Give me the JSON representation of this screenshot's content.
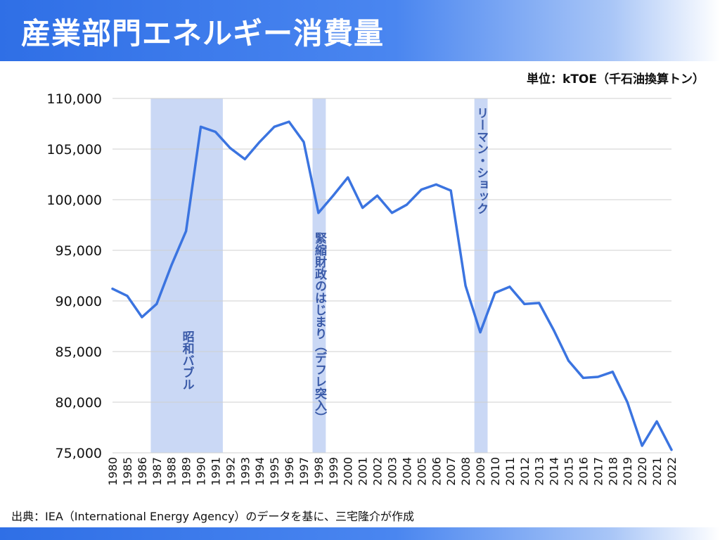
{
  "header": {
    "title": "産業部門エネルギー消費量"
  },
  "unit_label": "単位：kTOE（千石油換算トン）",
  "source": "出典：IEA（International Energy Agency）のデータを基に、三宅隆介が作成",
  "colors": {
    "accent": "#2f6fe6",
    "line": "#3b74e0",
    "band": "#cad8f5",
    "band_text": "#3a5aa8"
  },
  "chart_data": {
    "type": "line",
    "title": "産業部門エネルギー消費量",
    "ylabel": "単位：kTOE（千石油換算トン）",
    "ylim": [
      75000,
      110000
    ],
    "yticks": [
      75000,
      80000,
      85000,
      90000,
      95000,
      100000,
      105000,
      110000
    ],
    "ytick_labels": [
      "75,000",
      "80,000",
      "85,000",
      "90,000",
      "95,000",
      "100,000",
      "105,000",
      "110,000"
    ],
    "grid": true,
    "x": [
      "1980",
      "1985",
      "1986",
      "1987",
      "1988",
      "1989",
      "1990",
      "1991",
      "1992",
      "1993",
      "1994",
      "1995",
      "1996",
      "1997",
      "1998",
      "1999",
      "2000",
      "2001",
      "2002",
      "2003",
      "2004",
      "2005",
      "2006",
      "2007",
      "2008",
      "2009",
      "2010",
      "2011",
      "2012",
      "2013",
      "2014",
      "2015",
      "2016",
      "2017",
      "2018",
      "2019",
      "2020",
      "2021",
      "2022"
    ],
    "series": [
      {
        "values": [
          91200,
          90500,
          88400,
          89700,
          93500,
          96900,
          107200,
          106700,
          105100,
          104000,
          105700,
          107200,
          107700,
          105700,
          98700,
          100400,
          102200,
          99200,
          100400,
          98700,
          99500,
          101000,
          101500,
          100900,
          91500,
          86900,
          90800,
          91400,
          89700,
          89800,
          87100,
          84100,
          82400,
          82500,
          83000,
          80000,
          75700,
          78100,
          75300
        ]
      }
    ],
    "shaded_periods": [
      {
        "label": "昭和バブル",
        "from": "1986",
        "to": "1991"
      },
      {
        "label": "緊縮財政のはじまり（デフレ突入）",
        "from": "1997",
        "to": "1998"
      },
      {
        "label": "リーマン・ショック",
        "from": "2008",
        "to": "2009"
      }
    ]
  }
}
